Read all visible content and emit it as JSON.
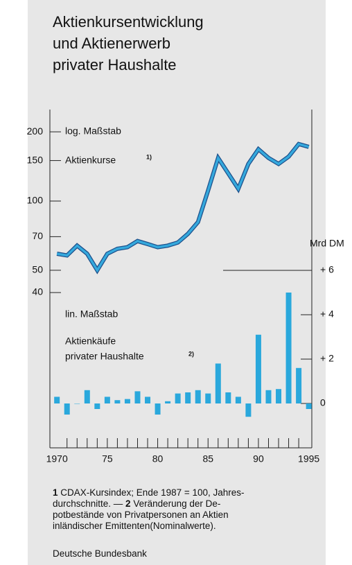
{
  "chart_data": {
    "type": "line-bar",
    "title": [
      "Aktienkursentwicklung",
      "und Aktienerwerb",
      "privater Haushalte"
    ],
    "annotations": {
      "log_scale": "log. Maßstab",
      "line_label": "Aktienkurse",
      "line_note": "1)",
      "lin_scale": "lin. Maßstab",
      "bar_label": [
        "Aktienkäufe",
        "privater Haushalte"
      ],
      "bar_note": "2)",
      "y2_unit": "Mrd DM"
    },
    "x": [
      1970,
      1971,
      1972,
      1973,
      1974,
      1975,
      1976,
      1977,
      1978,
      1979,
      1980,
      1981,
      1982,
      1983,
      1984,
      1985,
      1986,
      1987,
      1988,
      1989,
      1990,
      1991,
      1992,
      1993,
      1994,
      1995
    ],
    "xlim": [
      1969.3,
      1995.3
    ],
    "xticks": [
      {
        "value": 1970,
        "label": "1970"
      },
      {
        "value": 1975,
        "label": "75"
      },
      {
        "value": 1980,
        "label": "80"
      },
      {
        "value": 1985,
        "label": "85"
      },
      {
        "value": 1990,
        "label": "90"
      },
      {
        "value": 1995,
        "label": "1995"
      }
    ],
    "xminorticks": [
      1971,
      1972,
      1973,
      1974,
      1975,
      1976,
      1977,
      1978,
      1979,
      1980,
      1981,
      1982,
      1983,
      1984,
      1985,
      1986,
      1987,
      1988,
      1989,
      1990,
      1991,
      1992,
      1993,
      1994
    ],
    "ylim": [
      40,
      250
    ],
    "ylog": true,
    "yticks": [
      40,
      50,
      70,
      100,
      150,
      200
    ],
    "y2lim": [
      -2,
      6
    ],
    "y2ticks": [
      {
        "value": 6,
        "label": "+ 6"
      },
      {
        "value": 4,
        "label": "+ 4"
      },
      {
        "value": 2,
        "label": "+ 2"
      },
      0
    ],
    "series": [
      {
        "name": "Aktienkurse",
        "type": "line",
        "color": "#35a9dd",
        "outline": "#1d4f8a",
        "values": [
          59,
          58,
          64,
          59,
          50,
          59,
          62,
          63,
          67,
          65,
          63,
          64,
          66,
          72,
          81,
          111,
          154,
          132,
          113,
          145,
          168,
          154,
          145,
          156,
          177,
          172
        ]
      },
      {
        "name": "Aktienkäufe privater Haushalte",
        "type": "bar",
        "axis": "y2",
        "color": "#2aa8dc",
        "values": [
          0.3,
          -0.5,
          0,
          0.6,
          -0.25,
          0.3,
          0.15,
          0.2,
          0.55,
          0.3,
          -0.5,
          0.1,
          0.45,
          0.5,
          0.6,
          0.45,
          1.8,
          0.5,
          0.3,
          -0.6,
          3.1,
          0.6,
          0.65,
          5.0,
          1.6,
          -0.25
        ]
      }
    ]
  },
  "notes": [
    [
      {
        "text": "1",
        "bold": true
      },
      {
        "text": " CDAX-Kursindex; Ende 1987 = 100, Jahres-"
      }
    ],
    [
      {
        "text": "durchschnitte. — "
      },
      {
        "text": "2",
        "bold": true
      },
      {
        "text": " Veränderung der De-"
      }
    ],
    [
      {
        "text": "potbestände von Privatpersonen an Aktien"
      }
    ],
    [
      {
        "text": "inländischer Emittenten(Nominalwerte)."
      }
    ]
  ],
  "source": "Deutsche Bundesbank"
}
